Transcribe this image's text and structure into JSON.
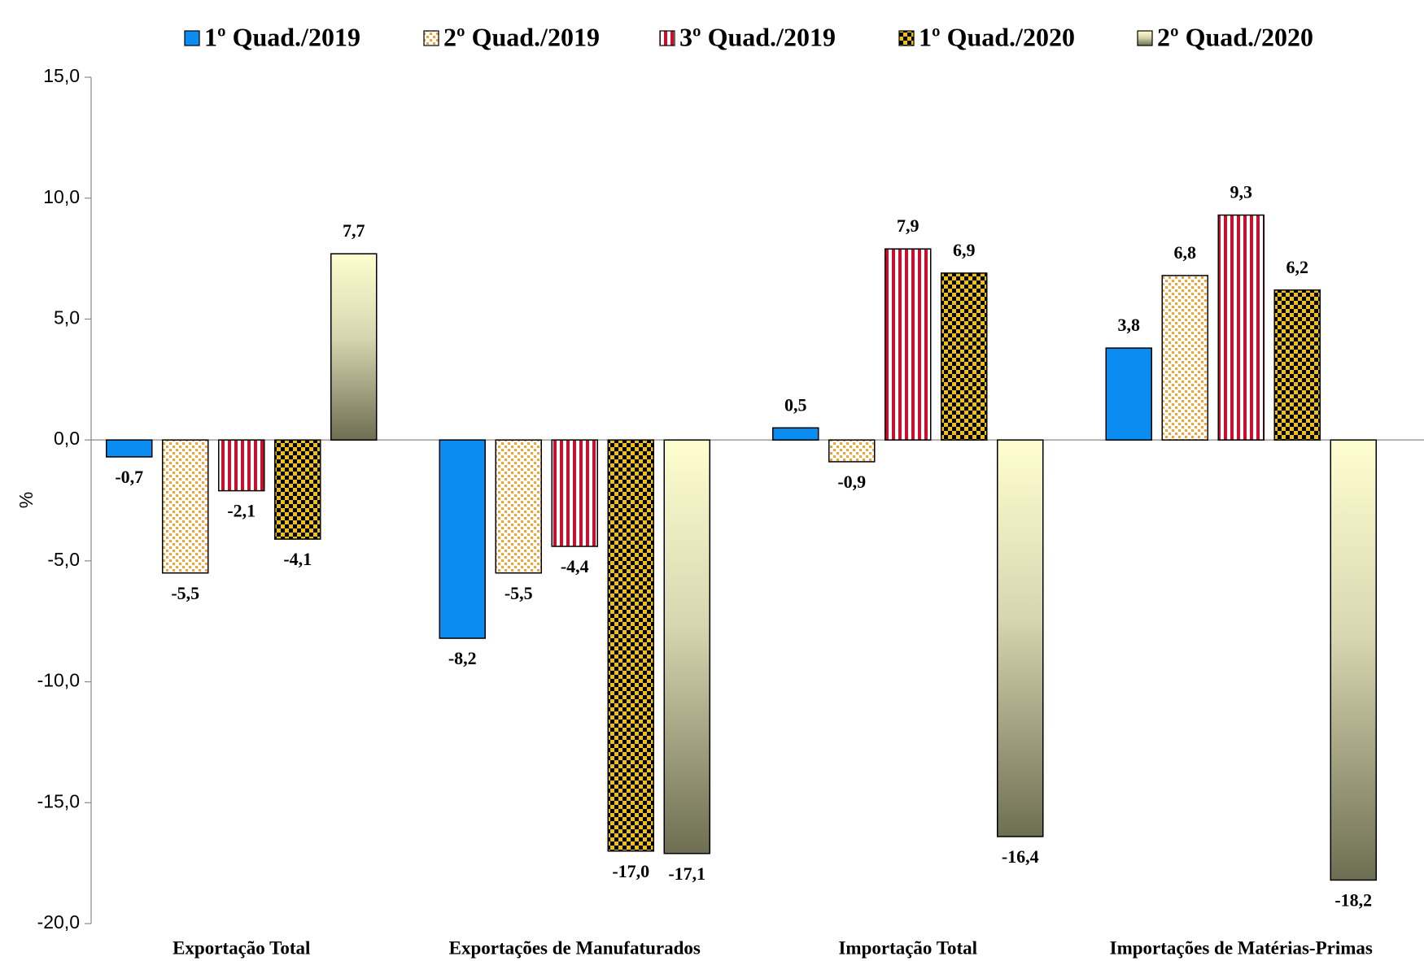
{
  "chart_data": {
    "type": "bar",
    "y_label": "%",
    "categories": [
      "Exportação Total",
      "Exportações de Manufaturados",
      "Importação Total",
      "Importações de Matérias-Primas"
    ],
    "series": [
      {
        "name": "1º Quad./2019",
        "color": "#0a8cf0",
        "fill_style": "solid",
        "values": [
          -0.7,
          -8.2,
          0.5,
          3.8
        ],
        "value_labels": [
          "-0,7",
          "-8,2",
          "0,5",
          "3,8"
        ]
      },
      {
        "name": "2º Quad./2019",
        "color": "#f5a030",
        "fill_style": "dots",
        "values": [
          -5.5,
          -5.5,
          -0.9,
          6.8
        ],
        "value_labels": [
          "-5,5",
          "-5,5",
          "-0,9",
          "6,8"
        ]
      },
      {
        "name": "3º Quad./2019",
        "color": "#c8102e",
        "fill_style": "stripes",
        "values": [
          -2.1,
          -4.4,
          7.9,
          9.3
        ],
        "value_labels": [
          "-2,1",
          "-4,4",
          "7,9",
          "9,3"
        ]
      },
      {
        "name": "1º Quad./2020",
        "color": "#f0c010",
        "fill_style": "checker",
        "values": [
          -4.1,
          -17.0,
          6.9,
          6.2
        ],
        "value_labels": [
          "-4,1",
          "-17,0",
          "6,9",
          "6,2"
        ]
      },
      {
        "name": "2º Quad./2020",
        "color": "#fffed0",
        "fill_style": "gradient",
        "values": [
          7.7,
          -17.1,
          -16.4,
          -18.2
        ],
        "value_labels": [
          "7,7",
          "-17,1",
          "-16,4",
          "-18,2"
        ]
      }
    ],
    "ylim": [
      -20,
      15
    ],
    "yticks": [
      {
        "value": -20,
        "label": "-20,0"
      },
      {
        "value": -15,
        "label": "-15,0"
      },
      {
        "value": -10,
        "label": "-10,0"
      },
      {
        "value": -5,
        "label": "-5,0"
      },
      {
        "value": 0,
        "label": "0,0"
      },
      {
        "value": 5,
        "label": "5,0"
      },
      {
        "value": 10,
        "label": "10,0"
      },
      {
        "value": 15,
        "label": "15,0"
      }
    ],
    "legend": "top"
  }
}
